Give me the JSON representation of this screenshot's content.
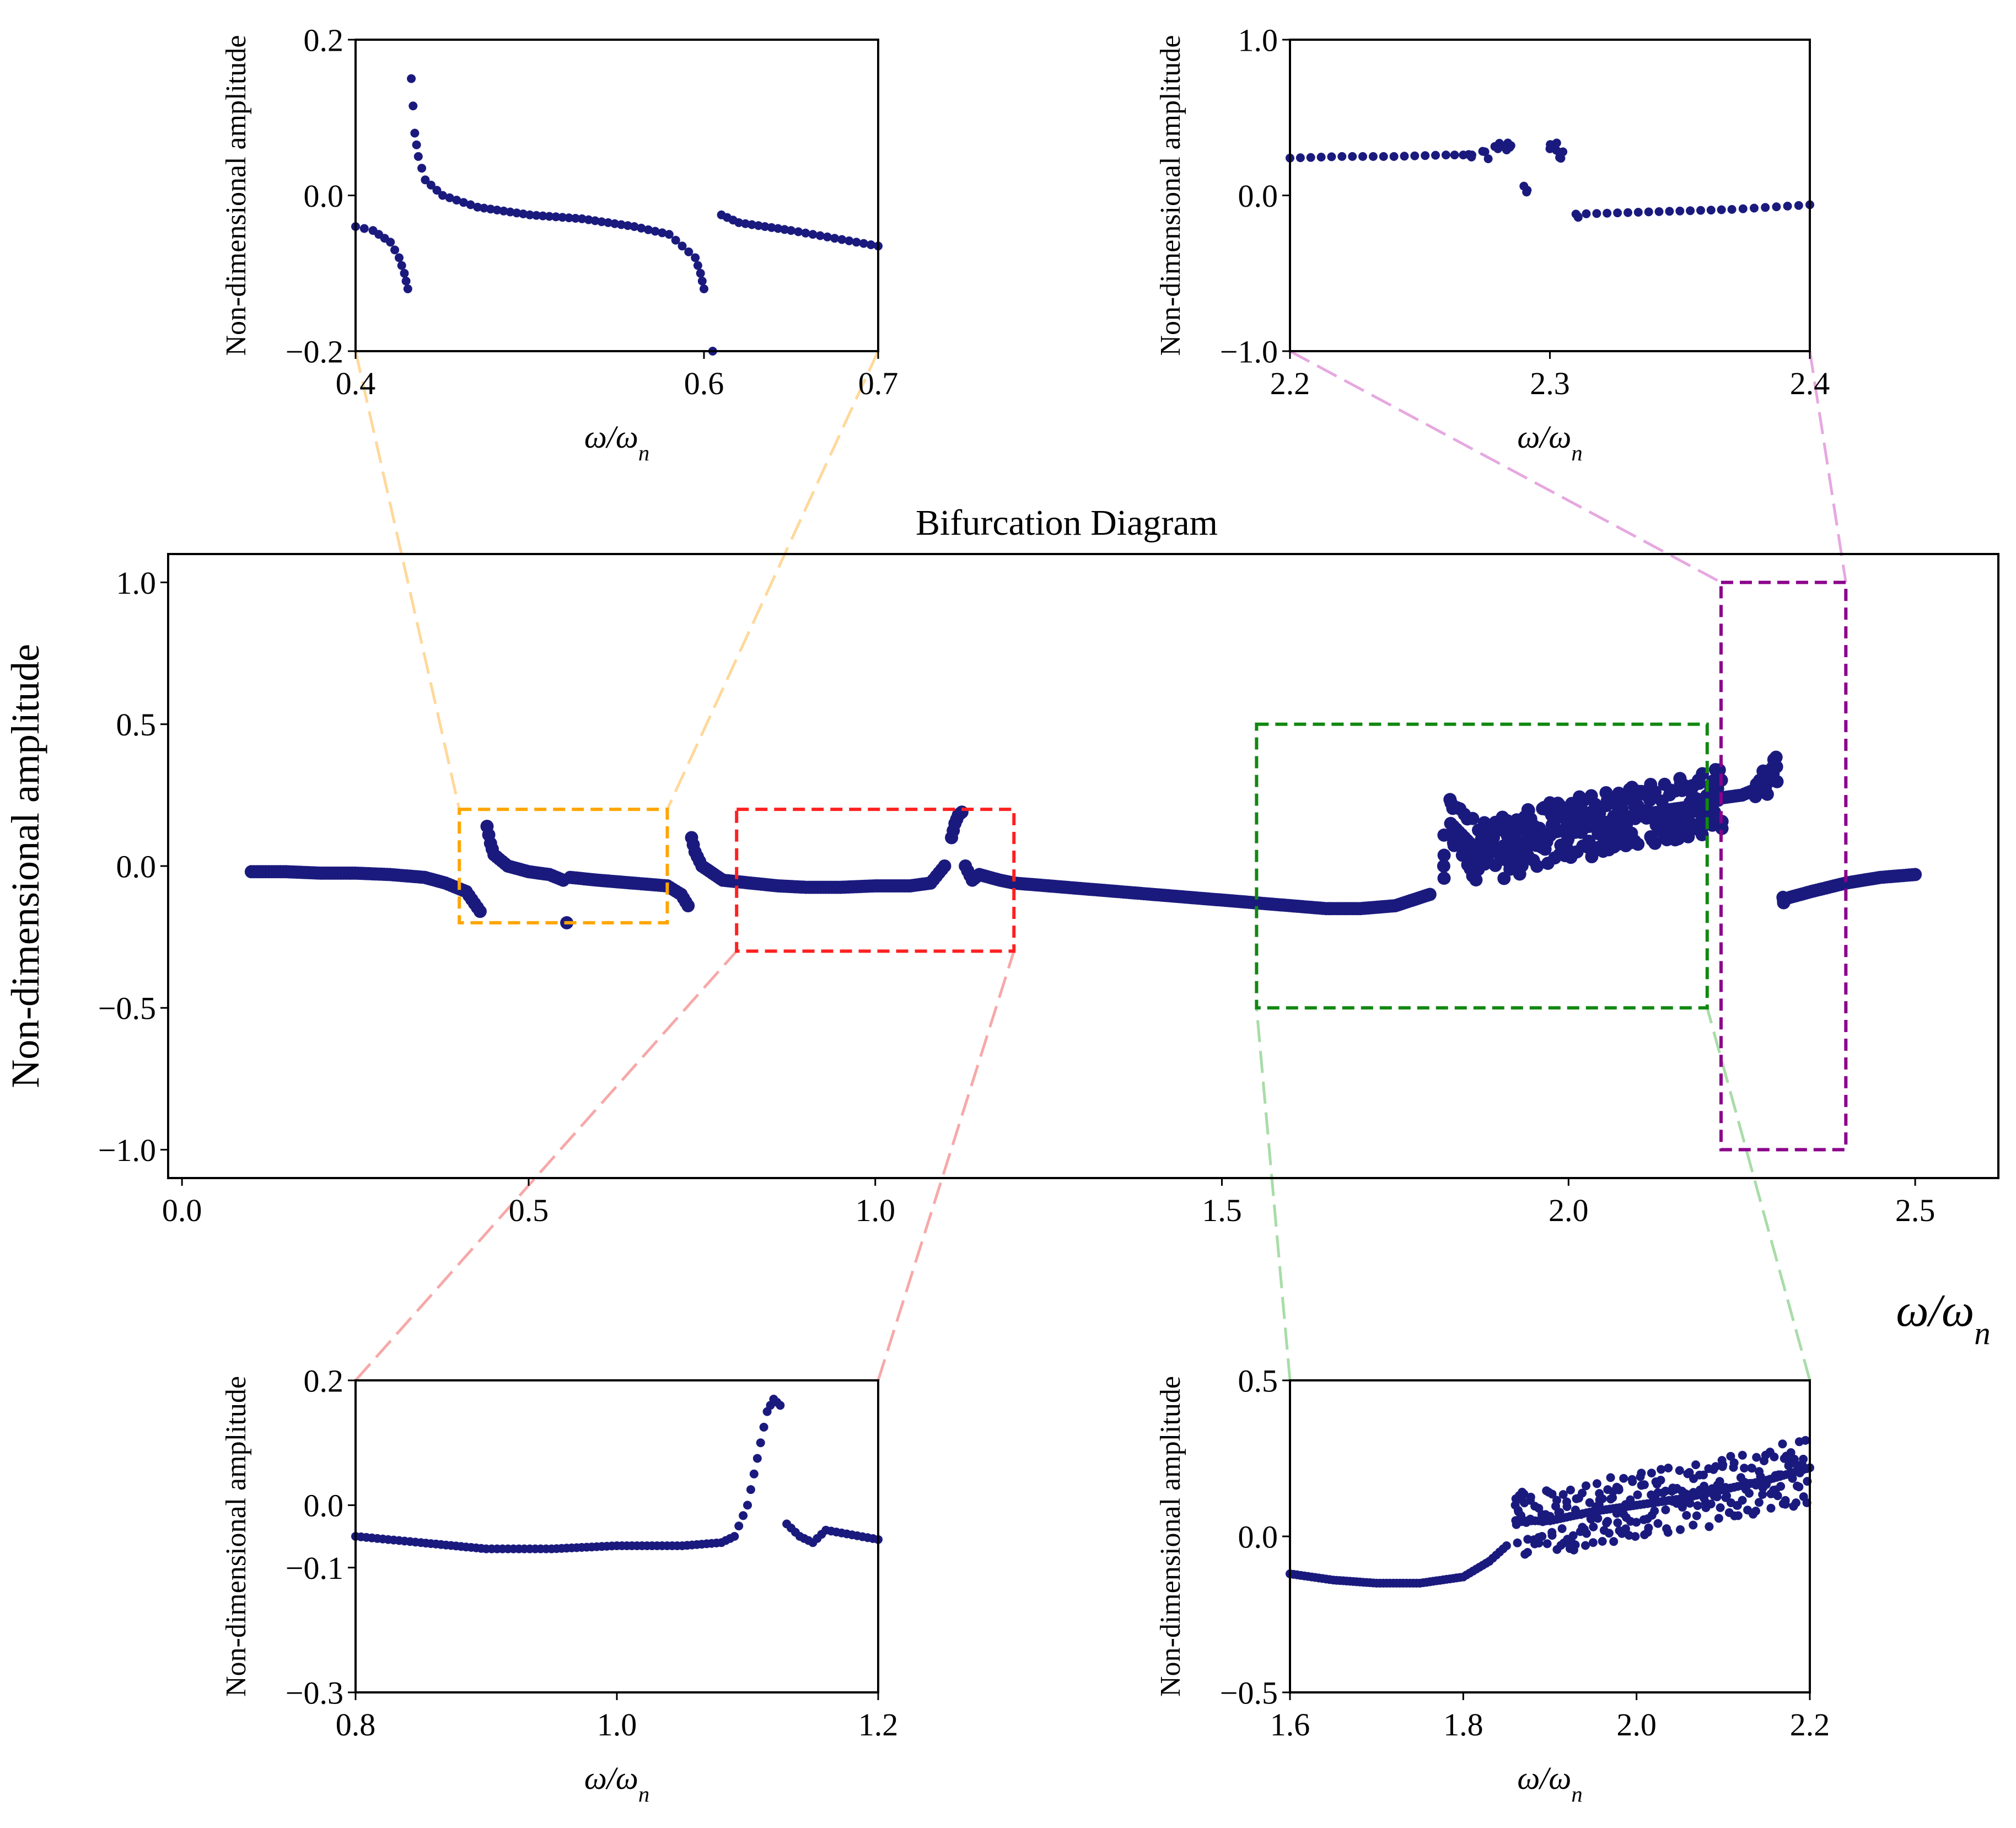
{
  "colors": {
    "point": "#1a1a7e",
    "orange_box": "#ffa500",
    "red_box": "#ff2020",
    "green_box": "#118811",
    "purple_box": "#8b008b",
    "orange_connector": "#ffd89a",
    "red_connector": "#f7a8a8",
    "green_connector": "#a8dca8",
    "purple_connector": "#e6a8e0"
  },
  "marker": {
    "shape": "filled-circle"
  },
  "chart_data": [
    {
      "id": "main",
      "type": "scatter",
      "title": "Bifurcation Diagram",
      "xlabel": "ω/ω",
      "xlabel_subscript": "n",
      "ylabel": "Non-dimensional amplitude",
      "xlim": [
        -0.02,
        2.62
      ],
      "ylim": [
        -1.1,
        1.1
      ],
      "xticks": [
        0.0,
        0.5,
        1.0,
        1.5,
        2.0,
        2.5
      ],
      "xtick_labels": [
        "0.0",
        "0.5",
        "1.0",
        "1.5",
        "2.0",
        "2.5"
      ],
      "yticks": [
        -1.0,
        -0.5,
        0.0,
        0.5,
        1.0
      ],
      "ytick_labels": [
        "−1.0",
        "−0.5",
        "0.0",
        "0.5",
        "1.0"
      ],
      "grid": false,
      "series": [
        {
          "name": "amplitude",
          "x": [
            0.1,
            0.15,
            0.2,
            0.25,
            0.3,
            0.35,
            0.38,
            0.41,
            0.43,
            0.44,
            0.445,
            0.45,
            0.47,
            0.5,
            0.53,
            0.55,
            0.555,
            0.56,
            0.6,
            0.65,
            0.7,
            0.72,
            0.73,
            0.735,
            0.74,
            0.75,
            0.78,
            0.82,
            0.86,
            0.9,
            0.95,
            1.0,
            1.05,
            1.08,
            1.1,
            1.11,
            1.115,
            1.12,
            1.125,
            1.13,
            1.14,
            1.15,
            1.18,
            1.2,
            1.25,
            1.3,
            1.35,
            1.4,
            1.45,
            1.5,
            1.55,
            1.6,
            1.65,
            1.7,
            1.75,
            1.8,
            1.82,
            1.83,
            1.85,
            1.87,
            1.9,
            1.93,
            1.95,
            1.98,
            2.0,
            2.03,
            2.05,
            2.08,
            2.1,
            2.13,
            2.15,
            2.18,
            2.2,
            2.22,
            2.25,
            2.27,
            2.28,
            2.29,
            2.3,
            2.31,
            2.32,
            2.35,
            2.4,
            2.45,
            2.5
          ],
          "y": [
            -0.02,
            -0.02,
            -0.025,
            -0.025,
            -0.03,
            -0.04,
            -0.06,
            -0.09,
            -0.16,
            0.14,
            0.08,
            0.04,
            0.0,
            -0.02,
            -0.03,
            -0.05,
            -0.2,
            -0.04,
            -0.05,
            -0.06,
            -0.07,
            -0.1,
            -0.14,
            0.1,
            0.05,
            0.0,
            -0.05,
            -0.06,
            -0.07,
            -0.075,
            -0.075,
            -0.07,
            -0.07,
            -0.06,
            0.0,
            0.1,
            0.15,
            0.18,
            0.19,
            0.0,
            -0.05,
            -0.03,
            -0.05,
            -0.06,
            -0.07,
            -0.08,
            -0.09,
            -0.1,
            -0.11,
            -0.12,
            -0.13,
            -0.14,
            -0.15,
            -0.15,
            -0.14,
            -0.1,
            0.0,
            0.15,
            0.1,
            0.05,
            0.06,
            0.08,
            0.1,
            0.12,
            0.13,
            0.14,
            0.15,
            0.17,
            0.18,
            0.19,
            0.2,
            0.21,
            0.22,
            0.24,
            0.25,
            0.27,
            0.28,
            0.3,
            0.35,
            -0.12,
            -0.11,
            -0.09,
            -0.06,
            -0.04,
            -0.03
          ]
        }
      ],
      "zoom_boxes": [
        {
          "name": "orange",
          "x_range": [
            0.4,
            0.7
          ],
          "y_range": [
            -0.2,
            0.2
          ]
        },
        {
          "name": "red",
          "x_range": [
            0.8,
            1.2
          ],
          "y_range": [
            -0.3,
            0.2
          ]
        },
        {
          "name": "green",
          "x_range": [
            1.55,
            2.2
          ],
          "y_range": [
            -0.5,
            0.5
          ]
        },
        {
          "name": "purple",
          "x_range": [
            2.22,
            2.4
          ],
          "y_range": [
            -1.0,
            1.0
          ]
        }
      ]
    },
    {
      "id": "inset_top_left",
      "type": "scatter",
      "title": "",
      "xlabel": "ω/ω",
      "xlabel_subscript": "n",
      "ylabel": "Non-dimensional amplitude",
      "xlim": [
        0.4,
        0.7
      ],
      "ylim": [
        -0.2,
        0.2
      ],
      "xticks": [
        0.4,
        0.6,
        0.7
      ],
      "xtick_labels": [
        "0.4",
        "0.6",
        "0.7"
      ],
      "yticks": [
        -0.2,
        0.0,
        0.2
      ],
      "ytick_labels": [
        "−0.2",
        "0.0",
        "0.2"
      ],
      "grid": false,
      "series": [
        {
          "name": "amplitude",
          "x": [
            0.4,
            0.41,
            0.42,
            0.425,
            0.428,
            0.43,
            0.432,
            0.434,
            0.436,
            0.44,
            0.45,
            0.47,
            0.5,
            0.53,
            0.56,
            0.58,
            0.595,
            0.598,
            0.6,
            0.605,
            0.61,
            0.62,
            0.65,
            0.7
          ],
          "y": [
            -0.04,
            -0.045,
            -0.06,
            -0.08,
            -0.1,
            -0.12,
            0.15,
            0.08,
            0.05,
            0.02,
            0.0,
            -0.015,
            -0.025,
            -0.03,
            -0.04,
            -0.05,
            -0.08,
            -0.1,
            -0.12,
            -0.2,
            -0.025,
            -0.035,
            -0.045,
            -0.065
          ]
        }
      ]
    },
    {
      "id": "inset_top_right",
      "type": "scatter",
      "title": "",
      "xlabel": "ω/ω",
      "xlabel_subscript": "n",
      "ylabel": "Non-dimensional amplitude",
      "xlim": [
        2.2,
        2.4
      ],
      "ylim": [
        -1.0,
        1.0
      ],
      "xticks": [
        2.2,
        2.3,
        2.4
      ],
      "xtick_labels": [
        "2.2",
        "2.3",
        "2.4"
      ],
      "yticks": [
        -1.0,
        0.0,
        1.0
      ],
      "ytick_labels": [
        "−1.0",
        "0.0",
        "1.0"
      ],
      "grid": false,
      "series": [
        {
          "name": "amplitude",
          "x": [
            2.2,
            2.22,
            2.24,
            2.26,
            2.27,
            2.28,
            2.285,
            2.29,
            2.3,
            2.305,
            2.31,
            2.33,
            2.35,
            2.37,
            2.4
          ],
          "y": [
            0.24,
            0.25,
            0.25,
            0.26,
            0.26,
            0.3,
            0.32,
            0.06,
            0.3,
            0.28,
            -0.12,
            -0.11,
            -0.1,
            -0.09,
            -0.06
          ]
        }
      ]
    },
    {
      "id": "inset_bottom_left",
      "type": "scatter",
      "title": "",
      "xlabel": "ω/ω",
      "xlabel_subscript": "n",
      "ylabel": "Non-dimensional amplitude",
      "xlim": [
        0.8,
        1.2
      ],
      "ylim": [
        -0.3,
        0.2
      ],
      "xticks": [
        0.8,
        1.0,
        1.2
      ],
      "xtick_labels": [
        "0.8",
        "1.0",
        "1.2"
      ],
      "yticks": [
        -0.3,
        -0.1,
        0.0,
        0.2
      ],
      "ytick_labels": [
        "−0.3",
        "−0.1",
        "0.0",
        "0.2"
      ],
      "grid": false,
      "series": [
        {
          "name": "amplitude",
          "x": [
            0.8,
            0.85,
            0.9,
            0.95,
            1.0,
            1.05,
            1.08,
            1.09,
            1.1,
            1.105,
            1.11,
            1.115,
            1.12,
            1.125,
            1.13,
            1.14,
            1.15,
            1.16,
            1.2
          ],
          "y": [
            -0.05,
            -0.06,
            -0.07,
            -0.07,
            -0.065,
            -0.065,
            -0.06,
            -0.05,
            0.0,
            0.05,
            0.1,
            0.15,
            0.17,
            0.16,
            -0.03,
            -0.05,
            -0.06,
            -0.04,
            -0.055
          ]
        }
      ]
    },
    {
      "id": "inset_bottom_right",
      "type": "scatter",
      "title": "",
      "xlabel": "ω/ω",
      "xlabel_subscript": "n",
      "ylabel": "Non-dimensional amplitude",
      "xlim": [
        1.6,
        2.2
      ],
      "ylim": [
        -0.5,
        0.5
      ],
      "xticks": [
        1.6,
        1.8,
        2.0,
        2.2
      ],
      "xtick_labels": [
        "1.6",
        "1.8",
        "2.0",
        "2.2"
      ],
      "yticks": [
        -0.5,
        0.0,
        0.5
      ],
      "ytick_labels": [
        "−0.5",
        "0.0",
        "0.5"
      ],
      "grid": false,
      "series": [
        {
          "name": "amplitude",
          "x": [
            1.6,
            1.65,
            1.7,
            1.75,
            1.8,
            1.83,
            1.85,
            1.86,
            1.87,
            1.9,
            1.95,
            2.0,
            2.05,
            2.1,
            2.15,
            2.2
          ],
          "y": [
            -0.12,
            -0.14,
            -0.15,
            -0.15,
            -0.13,
            -0.08,
            -0.03,
            0.1,
            0.05,
            0.05,
            0.08,
            0.1,
            0.12,
            0.15,
            0.18,
            0.22
          ]
        }
      ]
    }
  ]
}
